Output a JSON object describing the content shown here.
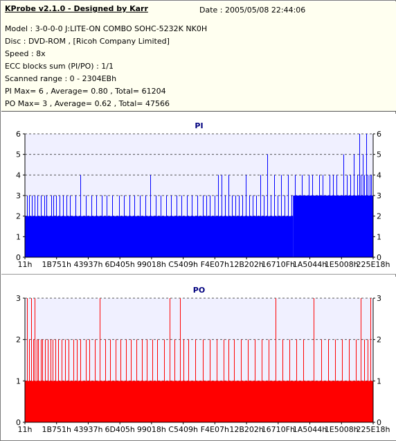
{
  "header": {
    "title": "KProbe v2.1.0 - Designed by Karr",
    "date": "Date : 2005/05/08 22:44:06",
    "lines": [
      "Model : 3-0-0-0 J:LITE-ON COMBO SOHC-5232K NK0H",
      "Disc : DVD-ROM ,  [Ricoh Company Limited]",
      "Speed : 8x",
      "ECC blocks sum (PI/PO) : 1/1",
      "Scanned range : 0 - 2304EBh",
      "PI Max= 6 , Average= 0.80 , Total= 61204",
      "PO Max= 3 , Average= 0.62 , Total= 47566"
    ]
  },
  "colors": {
    "pi_fill": "#0000ff",
    "po_fill": "#ff0000",
    "plot_bg": "#f0f0ff",
    "grid": "#555555"
  },
  "chart_data": [
    {
      "type": "bar",
      "title": "PI",
      "series_color": "#0000ff",
      "x_tick_labels": [
        "11h",
        "1B751h",
        "43937h",
        "6D405h",
        "99018h",
        "C5409h",
        "F4E07h",
        "12B202h",
        "16710Fh",
        "1A5044h",
        "1E5008h",
        "225E18h"
      ],
      "ylim": [
        0,
        6
      ],
      "y_ticks": [
        0,
        1,
        2,
        3,
        4,
        5,
        6
      ],
      "grid": true,
      "baseline_segments": [
        {
          "from": 0.0,
          "to": 0.77,
          "value": 2
        },
        {
          "from": 0.77,
          "to": 1.0,
          "value": 3
        }
      ],
      "spikes": [
        {
          "x": 0.005,
          "y": 3
        },
        {
          "x": 0.012,
          "y": 3
        },
        {
          "x": 0.02,
          "y": 3
        },
        {
          "x": 0.028,
          "y": 3
        },
        {
          "x": 0.035,
          "y": 3
        },
        {
          "x": 0.045,
          "y": 3
        },
        {
          "x": 0.055,
          "y": 3
        },
        {
          "x": 0.062,
          "y": 3
        },
        {
          "x": 0.075,
          "y": 3
        },
        {
          "x": 0.082,
          "y": 3
        },
        {
          "x": 0.09,
          "y": 3
        },
        {
          "x": 0.1,
          "y": 3
        },
        {
          "x": 0.11,
          "y": 3
        },
        {
          "x": 0.12,
          "y": 3
        },
        {
          "x": 0.13,
          "y": 3
        },
        {
          "x": 0.145,
          "y": 3
        },
        {
          "x": 0.16,
          "y": 4
        },
        {
          "x": 0.175,
          "y": 3
        },
        {
          "x": 0.19,
          "y": 3
        },
        {
          "x": 0.205,
          "y": 3
        },
        {
          "x": 0.22,
          "y": 3
        },
        {
          "x": 0.235,
          "y": 3
        },
        {
          "x": 0.25,
          "y": 3
        },
        {
          "x": 0.27,
          "y": 3
        },
        {
          "x": 0.285,
          "y": 3
        },
        {
          "x": 0.3,
          "y": 3
        },
        {
          "x": 0.315,
          "y": 3
        },
        {
          "x": 0.33,
          "y": 3
        },
        {
          "x": 0.345,
          "y": 3
        },
        {
          "x": 0.36,
          "y": 4
        },
        {
          "x": 0.375,
          "y": 3
        },
        {
          "x": 0.39,
          "y": 3
        },
        {
          "x": 0.405,
          "y": 3
        },
        {
          "x": 0.42,
          "y": 3
        },
        {
          "x": 0.435,
          "y": 3
        },
        {
          "x": 0.45,
          "y": 3
        },
        {
          "x": 0.465,
          "y": 3
        },
        {
          "x": 0.48,
          "y": 3
        },
        {
          "x": 0.495,
          "y": 3
        },
        {
          "x": 0.51,
          "y": 3
        },
        {
          "x": 0.52,
          "y": 3
        },
        {
          "x": 0.53,
          "y": 3
        },
        {
          "x": 0.545,
          "y": 3
        },
        {
          "x": 0.555,
          "y": 4
        },
        {
          "x": 0.565,
          "y": 4
        },
        {
          "x": 0.575,
          "y": 3
        },
        {
          "x": 0.585,
          "y": 4
        },
        {
          "x": 0.595,
          "y": 3
        },
        {
          "x": 0.605,
          "y": 3
        },
        {
          "x": 0.615,
          "y": 3
        },
        {
          "x": 0.625,
          "y": 3
        },
        {
          "x": 0.635,
          "y": 4
        },
        {
          "x": 0.645,
          "y": 3
        },
        {
          "x": 0.655,
          "y": 3
        },
        {
          "x": 0.665,
          "y": 3
        },
        {
          "x": 0.675,
          "y": 4
        },
        {
          "x": 0.685,
          "y": 3
        },
        {
          "x": 0.695,
          "y": 5
        },
        {
          "x": 0.705,
          "y": 3
        },
        {
          "x": 0.715,
          "y": 4
        },
        {
          "x": 0.725,
          "y": 3
        },
        {
          "x": 0.735,
          "y": 4
        },
        {
          "x": 0.745,
          "y": 3
        },
        {
          "x": 0.755,
          "y": 4
        },
        {
          "x": 0.765,
          "y": 3
        },
        {
          "x": 0.775,
          "y": 4
        },
        {
          "x": 0.785,
          "y": 3
        },
        {
          "x": 0.795,
          "y": 4
        },
        {
          "x": 0.805,
          "y": 3
        },
        {
          "x": 0.815,
          "y": 4
        },
        {
          "x": 0.825,
          "y": 4
        },
        {
          "x": 0.835,
          "y": 3
        },
        {
          "x": 0.845,
          "y": 4
        },
        {
          "x": 0.855,
          "y": 4
        },
        {
          "x": 0.865,
          "y": 3
        },
        {
          "x": 0.875,
          "y": 4
        },
        {
          "x": 0.885,
          "y": 4
        },
        {
          "x": 0.895,
          "y": 4
        },
        {
          "x": 0.905,
          "y": 3
        },
        {
          "x": 0.915,
          "y": 5
        },
        {
          "x": 0.925,
          "y": 4
        },
        {
          "x": 0.935,
          "y": 4
        },
        {
          "x": 0.945,
          "y": 5
        },
        {
          "x": 0.955,
          "y": 4
        },
        {
          "x": 0.96,
          "y": 6
        },
        {
          "x": 0.965,
          "y": 4
        },
        {
          "x": 0.97,
          "y": 5
        },
        {
          "x": 0.975,
          "y": 4
        },
        {
          "x": 0.98,
          "y": 6
        },
        {
          "x": 0.985,
          "y": 4
        },
        {
          "x": 0.99,
          "y": 4
        },
        {
          "x": 0.995,
          "y": 4
        }
      ]
    },
    {
      "type": "bar",
      "title": "PO",
      "series_color": "#ff0000",
      "x_tick_labels": [
        "11h",
        "1B751h",
        "43937h",
        "6D405h",
        "99018h",
        "C5409h",
        "F4E07h",
        "12B202h",
        "16710Fh",
        "1A5044h",
        "1E5008h",
        "225E18h"
      ],
      "ylim": [
        0,
        3
      ],
      "y_ticks": [
        0,
        1,
        2,
        3
      ],
      "grid": true,
      "baseline_segments": [
        {
          "from": 0.0,
          "to": 1.0,
          "value": 1
        }
      ],
      "spikes": [
        {
          "x": 0.005,
          "y": 3
        },
        {
          "x": 0.012,
          "y": 2
        },
        {
          "x": 0.018,
          "y": 3
        },
        {
          "x": 0.024,
          "y": 2
        },
        {
          "x": 0.028,
          "y": 3
        },
        {
          "x": 0.033,
          "y": 2
        },
        {
          "x": 0.038,
          "y": 2
        },
        {
          "x": 0.045,
          "y": 2
        },
        {
          "x": 0.05,
          "y": 2
        },
        {
          "x": 0.058,
          "y": 2
        },
        {
          "x": 0.066,
          "y": 2
        },
        {
          "x": 0.073,
          "y": 2
        },
        {
          "x": 0.08,
          "y": 2
        },
        {
          "x": 0.088,
          "y": 2
        },
        {
          "x": 0.095,
          "y": 2
        },
        {
          "x": 0.105,
          "y": 2
        },
        {
          "x": 0.115,
          "y": 2
        },
        {
          "x": 0.125,
          "y": 2
        },
        {
          "x": 0.14,
          "y": 2
        },
        {
          "x": 0.15,
          "y": 2
        },
        {
          "x": 0.16,
          "y": 2
        },
        {
          "x": 0.175,
          "y": 2
        },
        {
          "x": 0.185,
          "y": 2
        },
        {
          "x": 0.2,
          "y": 2
        },
        {
          "x": 0.215,
          "y": 3
        },
        {
          "x": 0.23,
          "y": 2
        },
        {
          "x": 0.245,
          "y": 2
        },
        {
          "x": 0.26,
          "y": 2
        },
        {
          "x": 0.275,
          "y": 2
        },
        {
          "x": 0.29,
          "y": 2
        },
        {
          "x": 0.305,
          "y": 2
        },
        {
          "x": 0.32,
          "y": 2
        },
        {
          "x": 0.335,
          "y": 2
        },
        {
          "x": 0.35,
          "y": 2
        },
        {
          "x": 0.365,
          "y": 2
        },
        {
          "x": 0.38,
          "y": 2
        },
        {
          "x": 0.4,
          "y": 2
        },
        {
          "x": 0.415,
          "y": 3
        },
        {
          "x": 0.43,
          "y": 2
        },
        {
          "x": 0.445,
          "y": 3
        },
        {
          "x": 0.455,
          "y": 2
        },
        {
          "x": 0.47,
          "y": 2
        },
        {
          "x": 0.49,
          "y": 2
        },
        {
          "x": 0.51,
          "y": 2
        },
        {
          "x": 0.53,
          "y": 2
        },
        {
          "x": 0.55,
          "y": 2
        },
        {
          "x": 0.57,
          "y": 2
        },
        {
          "x": 0.585,
          "y": 2
        },
        {
          "x": 0.6,
          "y": 2
        },
        {
          "x": 0.62,
          "y": 2
        },
        {
          "x": 0.64,
          "y": 2
        },
        {
          "x": 0.66,
          "y": 2
        },
        {
          "x": 0.68,
          "y": 2
        },
        {
          "x": 0.7,
          "y": 2
        },
        {
          "x": 0.72,
          "y": 3
        },
        {
          "x": 0.74,
          "y": 2
        },
        {
          "x": 0.76,
          "y": 2
        },
        {
          "x": 0.78,
          "y": 2
        },
        {
          "x": 0.8,
          "y": 2
        },
        {
          "x": 0.83,
          "y": 3
        },
        {
          "x": 0.85,
          "y": 2
        },
        {
          "x": 0.87,
          "y": 2
        },
        {
          "x": 0.89,
          "y": 2
        },
        {
          "x": 0.91,
          "y": 2
        },
        {
          "x": 0.93,
          "y": 2
        },
        {
          "x": 0.95,
          "y": 2
        },
        {
          "x": 0.965,
          "y": 3
        },
        {
          "x": 0.975,
          "y": 2
        },
        {
          "x": 0.985,
          "y": 2
        },
        {
          "x": 0.993,
          "y": 3
        }
      ]
    }
  ]
}
